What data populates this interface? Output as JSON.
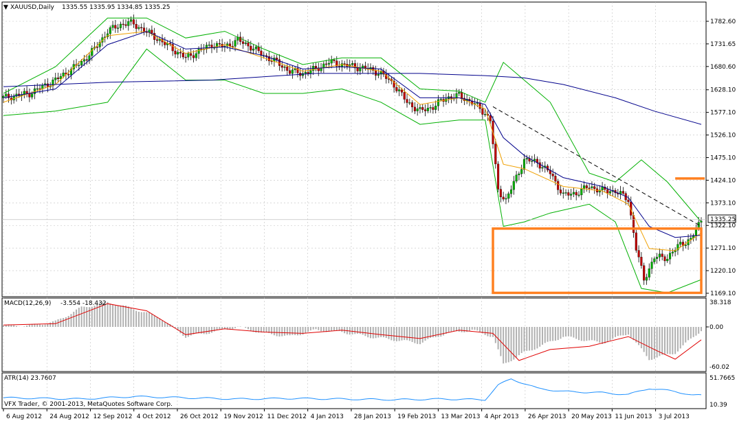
{
  "header": {
    "symbol": "XAUUSD,Daily",
    "ohlc": "1335.55 1335.95 1334.85 1335.25"
  },
  "macd": {
    "label": "MACD(12,26,9)",
    "values": "-3.554 -18.432",
    "y_ticks": [
      "38.318",
      "0.00",
      "-60.02"
    ]
  },
  "atr": {
    "label": "ATR(14) 23.7607",
    "y_ticks": [
      "51.7665",
      "10.39"
    ]
  },
  "copyright": "VFX Trader, © 2001-2013, MetaQuotes Software Corp.",
  "price_tag": "1335.25",
  "colors": {
    "bull": "#00b000",
    "bear": "#c00000",
    "wick": "#000000",
    "bollinger": "#00b000",
    "ema_fast": "#f0a000",
    "ema_mid": "#00008b",
    "ma_slow": "#00008b",
    "macd_hist": "#b0b0b0",
    "macd_signal": "#e00000",
    "atr_line": "#1e90ff",
    "annotation": "#ff8020",
    "grid": "#c0c0c0"
  },
  "chart_data": {
    "type": "candlestick",
    "instrument": "XAUUSD",
    "timeframe": "Daily",
    "y_ticks": [
      "1782.60",
      "1731.65",
      "1680.60",
      "1628.10",
      "1577.10",
      "1526.10",
      "1475.10",
      "1424.10",
      "1373.10",
      "1322.10",
      "1271.10",
      "1220.10",
      "1169.10"
    ],
    "x_ticks": [
      "6 Aug 2012",
      "24 Aug 2012",
      "12 Sep 2012",
      "4 Oct 2012",
      "26 Oct 2012",
      "19 Nov 2012",
      "11 Dec 2012",
      "4 Jan 2013",
      "28 Jan 2013",
      "19 Feb 2013",
      "13 Mar 2013",
      "4 Apr 2013",
      "26 Apr 2013",
      "20 May 2013",
      "11 Jun 2013",
      "3 Jul 2013"
    ],
    "ylim": [
      1160,
      1800
    ],
    "close_path": [
      [
        0,
        1610
      ],
      [
        10,
        1620
      ],
      [
        20,
        1650
      ],
      [
        25,
        1670
      ],
      [
        30,
        1690
      ],
      [
        35,
        1720
      ],
      [
        40,
        1760
      ],
      [
        45,
        1775
      ],
      [
        48,
        1780
      ],
      [
        52,
        1770
      ],
      [
        56,
        1755
      ],
      [
        60,
        1740
      ],
      [
        65,
        1720
      ],
      [
        70,
        1700
      ],
      [
        75,
        1715
      ],
      [
        80,
        1730
      ],
      [
        85,
        1725
      ],
      [
        90,
        1740
      ],
      [
        95,
        1725
      ],
      [
        100,
        1705
      ],
      [
        105,
        1690
      ],
      [
        110,
        1670
      ],
      [
        115,
        1665
      ],
      [
        120,
        1675
      ],
      [
        125,
        1690
      ],
      [
        130,
        1685
      ],
      [
        135,
        1680
      ],
      [
        140,
        1675
      ],
      [
        145,
        1665
      ],
      [
        150,
        1640
      ],
      [
        155,
        1600
      ],
      [
        160,
        1580
      ],
      [
        165,
        1590
      ],
      [
        170,
        1610
      ],
      [
        175,
        1615
      ],
      [
        180,
        1600
      ],
      [
        185,
        1575
      ],
      [
        187,
        1560
      ],
      [
        190,
        1400
      ],
      [
        193,
        1380
      ],
      [
        197,
        1430
      ],
      [
        200,
        1470
      ],
      [
        205,
        1465
      ],
      [
        210,
        1440
      ],
      [
        215,
        1390
      ],
      [
        220,
        1395
      ],
      [
        225,
        1410
      ],
      [
        230,
        1400
      ],
      [
        235,
        1400
      ],
      [
        240,
        1380
      ],
      [
        243,
        1270
      ],
      [
        246,
        1200
      ],
      [
        250,
        1250
      ],
      [
        255,
        1250
      ],
      [
        260,
        1280
      ],
      [
        264,
        1290
      ],
      [
        268,
        1335
      ]
    ],
    "bollinger_upper": [
      [
        0,
        1620
      ],
      [
        20,
        1680
      ],
      [
        40,
        1790
      ],
      [
        55,
        1790
      ],
      [
        70,
        1745
      ],
      [
        85,
        1760
      ],
      [
        100,
        1720
      ],
      [
        115,
        1685
      ],
      [
        130,
        1700
      ],
      [
        145,
        1700
      ],
      [
        160,
        1630
      ],
      [
        175,
        1625
      ],
      [
        185,
        1600
      ],
      [
        192,
        1690
      ],
      [
        200,
        1650
      ],
      [
        210,
        1600
      ],
      [
        225,
        1440
      ],
      [
        235,
        1420
      ],
      [
        245,
        1470
      ],
      [
        255,
        1420
      ],
      [
        268,
        1330
      ]
    ],
    "bollinger_lower": [
      [
        0,
        1570
      ],
      [
        20,
        1580
      ],
      [
        40,
        1600
      ],
      [
        55,
        1720
      ],
      [
        70,
        1650
      ],
      [
        85,
        1650
      ],
      [
        100,
        1620
      ],
      [
        115,
        1620
      ],
      [
        130,
        1630
      ],
      [
        145,
        1600
      ],
      [
        160,
        1550
      ],
      [
        175,
        1560
      ],
      [
        185,
        1560
      ],
      [
        192,
        1320
      ],
      [
        200,
        1330
      ],
      [
        210,
        1350
      ],
      [
        225,
        1370
      ],
      [
        235,
        1330
      ],
      [
        245,
        1180
      ],
      [
        255,
        1170
      ],
      [
        268,
        1200
      ]
    ],
    "ema_fast": [
      [
        0,
        1600
      ],
      [
        20,
        1640
      ],
      [
        40,
        1750
      ],
      [
        55,
        1760
      ],
      [
        70,
        1710
      ],
      [
        85,
        1730
      ],
      [
        100,
        1700
      ],
      [
        115,
        1670
      ],
      [
        130,
        1685
      ],
      [
        145,
        1670
      ],
      [
        160,
        1595
      ],
      [
        175,
        1610
      ],
      [
        185,
        1585
      ],
      [
        192,
        1460
      ],
      [
        200,
        1450
      ],
      [
        215,
        1410
      ],
      [
        230,
        1400
      ],
      [
        240,
        1370
      ],
      [
        248,
        1270
      ],
      [
        258,
        1265
      ],
      [
        268,
        1305
      ]
    ],
    "ema_mid": [
      [
        0,
        1610
      ],
      [
        20,
        1630
      ],
      [
        40,
        1730
      ],
      [
        55,
        1760
      ],
      [
        70,
        1720
      ],
      [
        85,
        1725
      ],
      [
        100,
        1705
      ],
      [
        115,
        1675
      ],
      [
        130,
        1680
      ],
      [
        145,
        1675
      ],
      [
        160,
        1610
      ],
      [
        175,
        1610
      ],
      [
        185,
        1595
      ],
      [
        192,
        1520
      ],
      [
        200,
        1480
      ],
      [
        215,
        1430
      ],
      [
        230,
        1410
      ],
      [
        240,
        1385
      ],
      [
        248,
        1320
      ],
      [
        258,
        1295
      ],
      [
        268,
        1300
      ]
    ],
    "ma_slow": [
      [
        0,
        1635
      ],
      [
        40,
        1645
      ],
      [
        80,
        1650
      ],
      [
        120,
        1665
      ],
      [
        160,
        1665
      ],
      [
        185,
        1660
      ],
      [
        200,
        1655
      ],
      [
        215,
        1640
      ],
      [
        235,
        1610
      ],
      [
        250,
        1580
      ],
      [
        268,
        1550
      ]
    ],
    "trendline": [
      [
        188,
        1590
      ],
      [
        268,
        1320
      ]
    ],
    "annotations": [
      {
        "type": "rectangle",
        "x": [
          188,
          268
        ],
        "y": [
          1170,
          1315
        ],
        "color": "#ff8020"
      },
      {
        "type": "level",
        "x": [
          258,
          268
        ],
        "y": 1428,
        "color": "#ff8020"
      }
    ],
    "macd_hist": [
      [
        0,
        2
      ],
      [
        10,
        2
      ],
      [
        20,
        8
      ],
      [
        30,
        30
      ],
      [
        40,
        38
      ],
      [
        50,
        28
      ],
      [
        60,
        15
      ],
      [
        70,
        -15
      ],
      [
        80,
        -8
      ],
      [
        90,
        0
      ],
      [
        100,
        -10
      ],
      [
        110,
        -15
      ],
      [
        120,
        -5
      ],
      [
        130,
        -8
      ],
      [
        140,
        -15
      ],
      [
        150,
        -20
      ],
      [
        160,
        -25
      ],
      [
        170,
        -10
      ],
      [
        180,
        -5
      ],
      [
        188,
        -15
      ],
      [
        192,
        -58
      ],
      [
        200,
        -40
      ],
      [
        215,
        -15
      ],
      [
        230,
        -25
      ],
      [
        240,
        -10
      ],
      [
        248,
        -50
      ],
      [
        258,
        -40
      ],
      [
        268,
        -5
      ]
    ],
    "macd_signal": [
      [
        0,
        3
      ],
      [
        20,
        5
      ],
      [
        40,
        36
      ],
      [
        55,
        25
      ],
      [
        70,
        -12
      ],
      [
        85,
        -3
      ],
      [
        100,
        -8
      ],
      [
        115,
        -10
      ],
      [
        130,
        -5
      ],
      [
        145,
        -12
      ],
      [
        160,
        -18
      ],
      [
        175,
        -5
      ],
      [
        188,
        -10
      ],
      [
        198,
        -52
      ],
      [
        210,
        -35
      ],
      [
        225,
        -30
      ],
      [
        240,
        -15
      ],
      [
        250,
        -35
      ],
      [
        258,
        -50
      ],
      [
        268,
        -20
      ]
    ],
    "atr_line": [
      [
        0,
        20
      ],
      [
        30,
        18
      ],
      [
        50,
        22
      ],
      [
        70,
        20
      ],
      [
        90,
        18
      ],
      [
        110,
        19
      ],
      [
        130,
        18
      ],
      [
        150,
        17
      ],
      [
        170,
        18
      ],
      [
        185,
        17
      ],
      [
        190,
        40
      ],
      [
        195,
        50
      ],
      [
        205,
        35
      ],
      [
        215,
        30
      ],
      [
        230,
        28
      ],
      [
        240,
        25
      ],
      [
        248,
        35
      ],
      [
        258,
        30
      ],
      [
        265,
        24
      ],
      [
        268,
        23.76
      ]
    ]
  }
}
